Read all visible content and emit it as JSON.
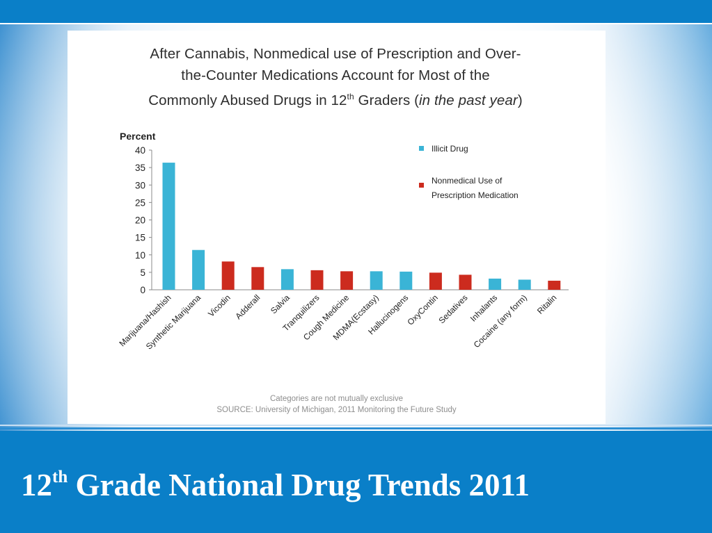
{
  "slide": {
    "title_prefix": "12",
    "title_sup": "th",
    "title_rest": " Grade  National Drug Trends 2011",
    "bar_color": "#0a7fc8"
  },
  "chart_data": {
    "type": "bar",
    "title_line1": "After Cannabis, Nonmedical use of Prescription and Over-",
    "title_line2": "the-Counter Medications Account for Most of the",
    "title_line3_a": "Commonly Abused Drugs in 12",
    "title_line3_sup": "th",
    "title_line3_b": " Graders (",
    "title_line3_italic": "in the past year",
    "title_line3_c": ")",
    "ylabel": "Percent",
    "ylim": [
      0,
      40
    ],
    "yticks": [
      0,
      5,
      10,
      15,
      20,
      25,
      30,
      35,
      40
    ],
    "categories": [
      "Marijuana/Hashish",
      "Synthetic Marijuana",
      "Vicodin",
      "Adderall",
      "Salvia",
      "Tranquilizers",
      "Cough Medicine",
      "MDMA(Ecstasy)",
      "Hallucinogens",
      "OxyContin",
      "Sedatives",
      "Inhalants",
      "Cocaine (any form)",
      "Ritalin"
    ],
    "values": [
      36.4,
      11.4,
      8.1,
      6.5,
      5.9,
      5.6,
      5.3,
      5.3,
      5.2,
      4.9,
      4.3,
      3.2,
      2.9,
      2.6
    ],
    "groups": [
      "illicit",
      "illicit",
      "rx",
      "rx",
      "illicit",
      "rx",
      "rx",
      "illicit",
      "illicit",
      "rx",
      "rx",
      "illicit",
      "illicit",
      "rx"
    ],
    "legend": [
      {
        "key": "illicit",
        "lines": [
          "Illicit Drug"
        ],
        "color": "#3ab4d6"
      },
      {
        "key": "rx",
        "lines": [
          "Nonmedical Use of",
          "Prescription Medication"
        ],
        "color": "#cc2b1e"
      }
    ],
    "legend_position": "top-right",
    "grid": false,
    "note": "Categories are not mutually exclusive",
    "source": "SOURCE: University of Michigan, 2011 Monitoring the Future Study"
  }
}
